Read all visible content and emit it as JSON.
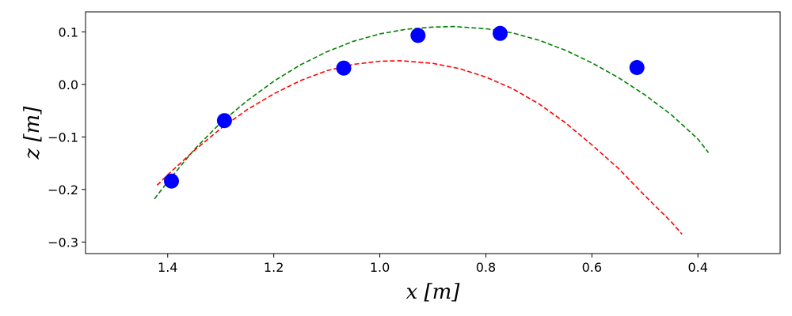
{
  "chart_data": {
    "type": "scatter",
    "xlabel": "x [m]",
    "ylabel": "z [m]",
    "xlim": [
      1.555,
      0.245
    ],
    "ylim": [
      -0.322,
      0.138
    ],
    "x_reversed": true,
    "grid": false,
    "xticks": [
      {
        "value": 1.4,
        "label": "1.4"
      },
      {
        "value": 1.2,
        "label": "1.2"
      },
      {
        "value": 1.0,
        "label": "1.0"
      },
      {
        "value": 0.8,
        "label": "0.8"
      },
      {
        "value": 0.6,
        "label": "0.6"
      },
      {
        "value": 0.4,
        "label": "0.4"
      }
    ],
    "yticks": [
      {
        "value": 0.1,
        "label": "0.1"
      },
      {
        "value": 0.0,
        "label": "0.0"
      },
      {
        "value": -0.1,
        "label": "−0.1"
      },
      {
        "value": -0.2,
        "label": "−0.2"
      },
      {
        "value": -0.3,
        "label": "−0.3"
      }
    ],
    "points": {
      "color": "#0000ff",
      "x": [
        1.393,
        1.293,
        1.068,
        0.928,
        0.773,
        0.515
      ],
      "y": [
        -0.184,
        -0.069,
        0.031,
        0.093,
        0.097,
        0.032
      ]
    },
    "curves": [
      {
        "color": "#008000",
        "style": "dashed",
        "x": [
          1.425,
          1.4,
          1.35,
          1.3,
          1.25,
          1.2,
          1.15,
          1.1,
          1.05,
          1.0,
          0.95,
          0.9,
          0.86,
          0.8,
          0.75,
          0.7,
          0.65,
          0.6,
          0.55,
          0.5,
          0.45,
          0.4,
          0.38
        ],
        "y": [
          -0.218,
          -0.185,
          -0.124,
          -0.073,
          -0.031,
          0.006,
          0.037,
          0.062,
          0.082,
          0.096,
          0.105,
          0.109,
          0.11,
          0.106,
          0.098,
          0.084,
          0.065,
          0.041,
          0.013,
          -0.02,
          -0.058,
          -0.104,
          -0.13
        ]
      },
      {
        "color": "#ff0000",
        "style": "dashed",
        "x": [
          1.42,
          1.4,
          1.35,
          1.3,
          1.25,
          1.2,
          1.15,
          1.1,
          1.05,
          1.0,
          0.96,
          0.9,
          0.85,
          0.8,
          0.75,
          0.7,
          0.65,
          0.6,
          0.55,
          0.5,
          0.45,
          0.43
        ],
        "y": [
          -0.192,
          -0.172,
          -0.126,
          -0.084,
          -0.048,
          -0.018,
          0.007,
          0.026,
          0.038,
          0.044,
          0.045,
          0.04,
          0.03,
          0.014,
          -0.008,
          -0.037,
          -0.073,
          -0.115,
          -0.16,
          -0.212,
          -0.262,
          -0.285
        ]
      }
    ]
  }
}
